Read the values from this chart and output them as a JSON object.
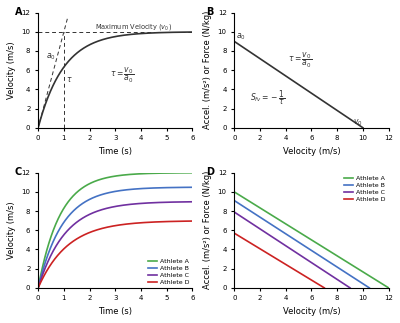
{
  "panel_A": {
    "v0": 10,
    "tau": 1.0,
    "t_max": 6,
    "ylim": [
      0,
      12
    ],
    "xlabel": "Time (s)",
    "ylabel": "Velocity (m/s)",
    "label": "A"
  },
  "panel_B": {
    "a0": 9,
    "v0": 10,
    "ylim": [
      0,
      12
    ],
    "xlim": [
      0,
      12
    ],
    "xlabel": "Velocity (m/s)",
    "ylabel": "Accel. (m/s²) or Force (N/kg)",
    "label": "B"
  },
  "panel_C": {
    "athletes": [
      {
        "name": "Athlete A",
        "v0": 12.0,
        "tau": 0.85,
        "color": "#4aaa4a"
      },
      {
        "name": "Athlete B",
        "v0": 10.5,
        "tau": 0.95,
        "color": "#4472c4"
      },
      {
        "name": "Athlete C",
        "v0": 9.0,
        "tau": 1.05,
        "color": "#7030a0"
      },
      {
        "name": "Athlete D",
        "v0": 7.0,
        "tau": 1.15,
        "color": "#cc2222"
      }
    ],
    "t_max": 6,
    "ylim": [
      0,
      12
    ],
    "xlabel": "Time (s)",
    "ylabel": "Velocity (m/s)",
    "label": "C"
  },
  "panel_D": {
    "athletes": [
      {
        "name": "Athlete A",
        "v0": 12.0,
        "a0": 10.0,
        "color": "#4aaa4a"
      },
      {
        "name": "Athlete B",
        "v0": 10.5,
        "a0": 9.1,
        "color": "#4472c4"
      },
      {
        "name": "Athlete C",
        "v0": 9.0,
        "a0": 7.9,
        "color": "#7030a0"
      },
      {
        "name": "Athlete D",
        "v0": 7.0,
        "a0": 5.7,
        "color": "#cc2222"
      }
    ],
    "ylim": [
      0,
      12
    ],
    "xlim": [
      0,
      12
    ],
    "xlabel": "Velocity (m/s)",
    "ylabel": "Accel. (m/s²) or Force (N/kg)",
    "label": "D"
  },
  "background_color": "#ffffff",
  "line_color": "#333333"
}
